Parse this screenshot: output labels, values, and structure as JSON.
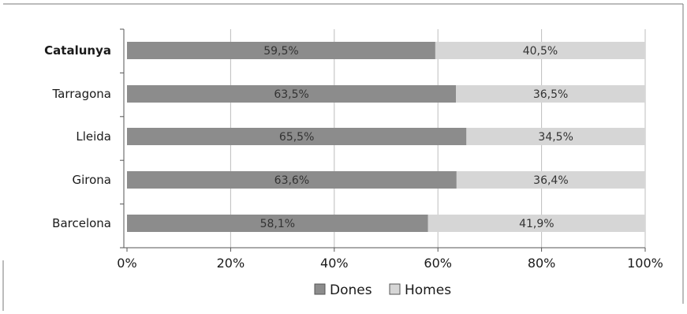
{
  "chart_data": {
    "type": "bar",
    "orientation": "horizontal",
    "stacked": true,
    "categories": [
      "Catalunya",
      "Tarragona",
      "Lleida",
      "Girona",
      "Barcelona"
    ],
    "category_labels": [
      "Catalunya",
      "Tarragona",
      "Lleida",
      "Girona",
      "Barcelona"
    ],
    "emphasized_category": "Catalunya",
    "series": [
      {
        "name": "Dones",
        "values": [
          59.5,
          63.5,
          65.5,
          63.6,
          58.1
        ],
        "labels": [
          "59,5%",
          "63,5%",
          "65,5%",
          "63,6%",
          "58,1%"
        ],
        "color": "#8c8c8c"
      },
      {
        "name": "Homes",
        "values": [
          40.5,
          36.5,
          34.5,
          36.4,
          41.9
        ],
        "labels": [
          "40,5%",
          "36,5%",
          "34,5%",
          "36,4%",
          "41,9%"
        ],
        "color": "#d6d6d6"
      }
    ],
    "xlim": [
      0,
      100
    ],
    "x_ticks": [
      0,
      20,
      40,
      60,
      80,
      100
    ],
    "x_tick_labels": [
      "0%",
      "20%",
      "40%",
      "60%",
      "80%",
      "100%"
    ],
    "grid": true,
    "legend": "bottom",
    "title": "",
    "xlabel": "",
    "ylabel": ""
  }
}
